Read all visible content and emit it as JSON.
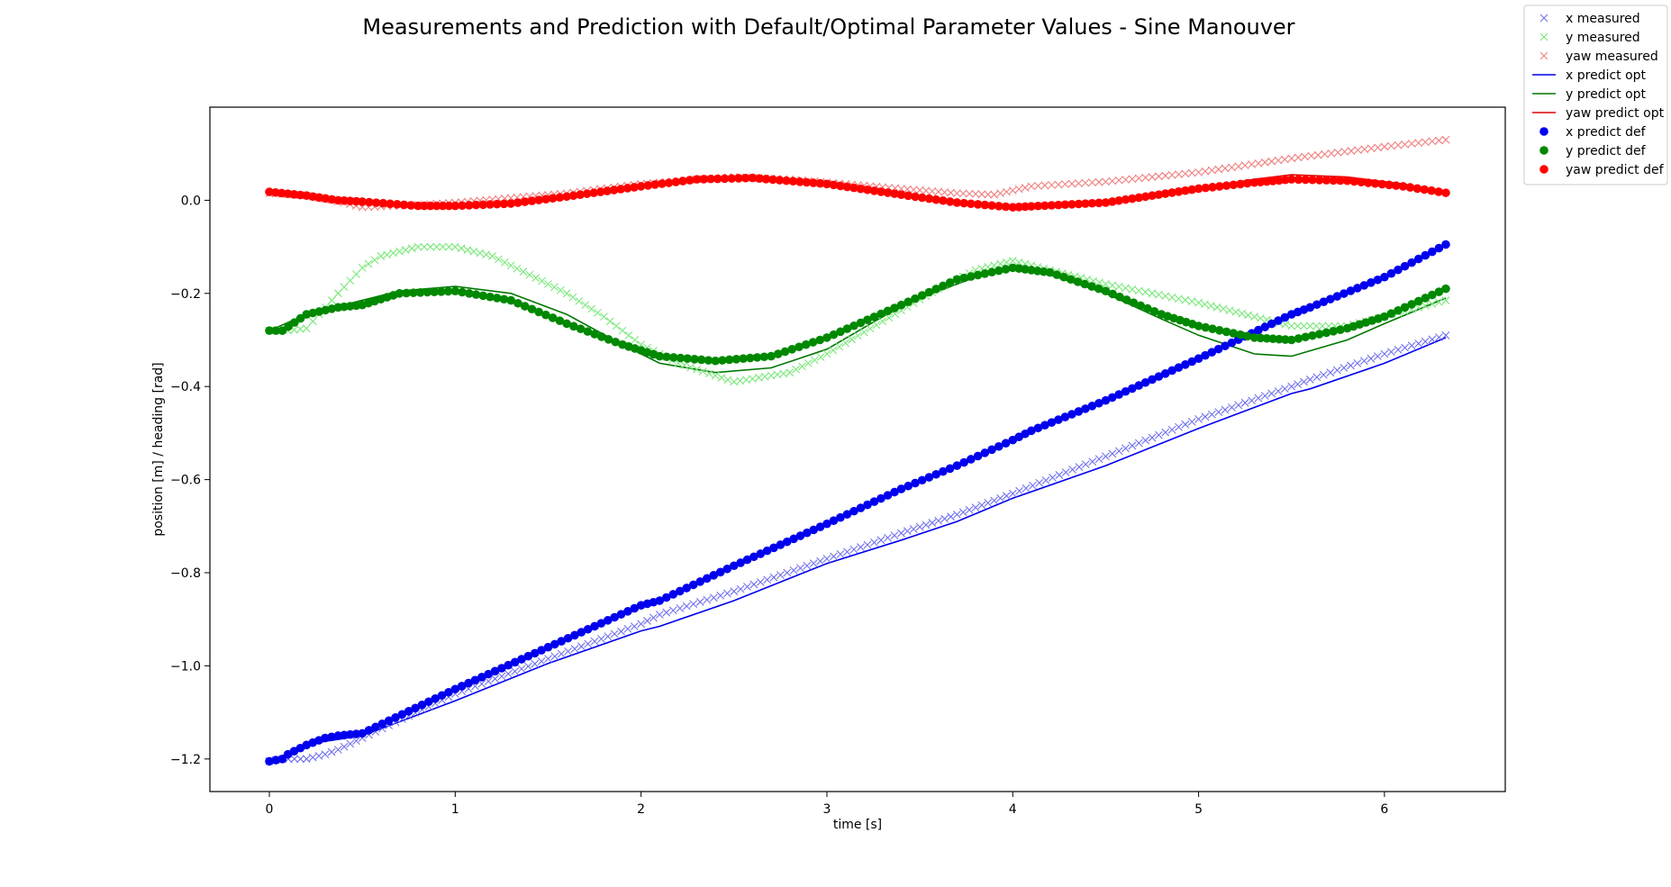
{
  "chart_data": {
    "type": "line",
    "title": "Measurements and Prediction with Default/Optimal Parameter Values - Sine Manouver",
    "xlabel": "time [s]",
    "ylabel": "position [m] / heading [rad]",
    "xlim": [
      -0.32,
      6.65
    ],
    "ylim": [
      -1.27,
      0.2
    ],
    "xticks": [
      0,
      1,
      2,
      3,
      4,
      5,
      6
    ],
    "yticks": [
      0.0,
      -0.2,
      -0.4,
      -0.6,
      -0.8,
      -1.0,
      -1.2
    ],
    "xtick_labels": [
      "0",
      "1",
      "2",
      "3",
      "4",
      "5",
      "6"
    ],
    "ytick_labels": [
      "0.0",
      "−0.2",
      "−0.4",
      "−0.6",
      "−0.8",
      "−1.0",
      "−1.2"
    ],
    "grid": false,
    "legend_position": "top-right, outside plot",
    "series": [
      {
        "name": "x measured",
        "style": "x",
        "color": "#7070ee",
        "points": [
          [
            0,
            -1.205
          ],
          [
            0.07,
            -1.2
          ],
          [
            0.2,
            -1.2
          ],
          [
            0.3,
            -1.19
          ],
          [
            0.37,
            -1.18
          ],
          [
            0.5,
            -1.155
          ],
          [
            1.0,
            -1.06
          ],
          [
            1.5,
            -0.985
          ],
          [
            2.0,
            -0.91
          ],
          [
            2.1,
            -0.89
          ],
          [
            2.5,
            -0.84
          ],
          [
            3.0,
            -0.77
          ],
          [
            3.4,
            -0.715
          ],
          [
            3.7,
            -0.675
          ],
          [
            4.0,
            -0.63
          ],
          [
            4.5,
            -0.55
          ],
          [
            5.0,
            -0.47
          ],
          [
            5.5,
            -0.4
          ],
          [
            5.6,
            -0.385
          ],
          [
            6.0,
            -0.33
          ],
          [
            6.33,
            -0.29
          ]
        ]
      },
      {
        "name": "y measured",
        "style": "x",
        "color": "#7ae87a",
        "points": [
          [
            0,
            -0.28
          ],
          [
            0.1,
            -0.28
          ],
          [
            0.2,
            -0.275
          ],
          [
            0.37,
            -0.2
          ],
          [
            0.5,
            -0.145
          ],
          [
            0.6,
            -0.12
          ],
          [
            0.8,
            -0.1
          ],
          [
            1.0,
            -0.1
          ],
          [
            1.2,
            -0.12
          ],
          [
            1.4,
            -0.16
          ],
          [
            1.6,
            -0.2
          ],
          [
            1.8,
            -0.25
          ],
          [
            2.0,
            -0.31
          ],
          [
            2.2,
            -0.35
          ],
          [
            2.5,
            -0.39
          ],
          [
            2.8,
            -0.37
          ],
          [
            3.0,
            -0.33
          ],
          [
            3.3,
            -0.26
          ],
          [
            3.6,
            -0.19
          ],
          [
            3.8,
            -0.15
          ],
          [
            4.0,
            -0.13
          ],
          [
            4.2,
            -0.15
          ],
          [
            4.5,
            -0.18
          ],
          [
            5.0,
            -0.22
          ],
          [
            5.3,
            -0.25
          ],
          [
            5.5,
            -0.27
          ],
          [
            5.8,
            -0.27
          ],
          [
            6.0,
            -0.25
          ],
          [
            6.33,
            -0.215
          ]
        ]
      },
      {
        "name": "yaw measured",
        "style": "x",
        "color": "#f08080",
        "points": [
          [
            0,
            0.015
          ],
          [
            0.2,
            0.01
          ],
          [
            0.4,
            -0.005
          ],
          [
            0.5,
            -0.015
          ],
          [
            0.8,
            -0.01
          ],
          [
            1.0,
            -0.005
          ],
          [
            1.3,
            0.005
          ],
          [
            1.6,
            0.015
          ],
          [
            2.0,
            0.035
          ],
          [
            2.3,
            0.045
          ],
          [
            2.5,
            0.05
          ],
          [
            2.8,
            0.045
          ],
          [
            3.1,
            0.035
          ],
          [
            3.4,
            0.025
          ],
          [
            3.7,
            0.015
          ],
          [
            3.9,
            0.012
          ],
          [
            4.1,
            0.03
          ],
          [
            4.5,
            0.04
          ],
          [
            5.0,
            0.06
          ],
          [
            5.5,
            0.09
          ],
          [
            6.0,
            0.115
          ],
          [
            6.33,
            0.13
          ]
        ]
      },
      {
        "name": "x predict opt",
        "style": "line",
        "color": "#0000ee",
        "points": [
          [
            0,
            -1.205
          ],
          [
            0.25,
            -1.165
          ],
          [
            0.5,
            -1.15
          ],
          [
            1.0,
            -1.075
          ],
          [
            1.5,
            -0.995
          ],
          [
            2.0,
            -0.925
          ],
          [
            2.1,
            -0.915
          ],
          [
            2.5,
            -0.86
          ],
          [
            3.0,
            -0.78
          ],
          [
            3.4,
            -0.73
          ],
          [
            3.7,
            -0.69
          ],
          [
            4.0,
            -0.64
          ],
          [
            4.5,
            -0.57
          ],
          [
            5.0,
            -0.49
          ],
          [
            5.5,
            -0.415
          ],
          [
            5.6,
            -0.405
          ],
          [
            6.0,
            -0.35
          ],
          [
            6.33,
            -0.295
          ]
        ]
      },
      {
        "name": "y predict opt",
        "style": "line",
        "color": "#007700",
        "points": [
          [
            0,
            -0.28
          ],
          [
            0.2,
            -0.245
          ],
          [
            0.4,
            -0.225
          ],
          [
            0.7,
            -0.195
          ],
          [
            1.0,
            -0.185
          ],
          [
            1.3,
            -0.2
          ],
          [
            1.6,
            -0.245
          ],
          [
            1.9,
            -0.31
          ],
          [
            2.1,
            -0.35
          ],
          [
            2.4,
            -0.37
          ],
          [
            2.7,
            -0.36
          ],
          [
            3.0,
            -0.32
          ],
          [
            3.3,
            -0.25
          ],
          [
            3.5,
            -0.21
          ],
          [
            3.8,
            -0.165
          ],
          [
            4.0,
            -0.145
          ],
          [
            4.2,
            -0.16
          ],
          [
            4.5,
            -0.2
          ],
          [
            4.8,
            -0.255
          ],
          [
            5.0,
            -0.29
          ],
          [
            5.3,
            -0.33
          ],
          [
            5.5,
            -0.335
          ],
          [
            5.8,
            -0.3
          ],
          [
            6.0,
            -0.265
          ],
          [
            6.33,
            -0.21
          ]
        ]
      },
      {
        "name": "yaw predict opt",
        "style": "line",
        "color": "#dd0000",
        "points": [
          [
            0,
            0.015
          ],
          [
            0.3,
            0.005
          ],
          [
            0.5,
            -0.005
          ],
          [
            0.8,
            -0.013
          ],
          [
            1.0,
            -0.015
          ],
          [
            1.3,
            -0.01
          ],
          [
            1.6,
            0.005
          ],
          [
            2.0,
            0.03
          ],
          [
            2.3,
            0.045
          ],
          [
            2.6,
            0.05
          ],
          [
            3.0,
            0.04
          ],
          [
            3.4,
            0.015
          ],
          [
            3.7,
            -0.005
          ],
          [
            4.0,
            -0.015
          ],
          [
            4.3,
            -0.012
          ],
          [
            4.6,
            -0.003
          ],
          [
            5.0,
            0.025
          ],
          [
            5.3,
            0.045
          ],
          [
            5.5,
            0.055
          ],
          [
            5.8,
            0.05
          ],
          [
            6.1,
            0.035
          ],
          [
            6.33,
            0.018
          ]
        ]
      },
      {
        "name": "x predict def",
        "style": "dot",
        "color": "#0000ee",
        "points": [
          [
            0,
            -1.205
          ],
          [
            0.07,
            -1.2
          ],
          [
            0.1,
            -1.19
          ],
          [
            0.2,
            -1.17
          ],
          [
            0.3,
            -1.155
          ],
          [
            0.37,
            -1.15
          ],
          [
            0.5,
            -1.145
          ],
          [
            1.0,
            -1.05
          ],
          [
            1.5,
            -0.96
          ],
          [
            2.0,
            -0.87
          ],
          [
            2.1,
            -0.86
          ],
          [
            2.5,
            -0.785
          ],
          [
            3.0,
            -0.695
          ],
          [
            3.4,
            -0.62
          ],
          [
            3.7,
            -0.57
          ],
          [
            4.0,
            -0.515
          ],
          [
            4.1,
            -0.495
          ],
          [
            4.5,
            -0.43
          ],
          [
            5.0,
            -0.34
          ],
          [
            5.5,
            -0.245
          ],
          [
            5.6,
            -0.23
          ],
          [
            6.0,
            -0.165
          ],
          [
            6.33,
            -0.095
          ]
        ]
      },
      {
        "name": "y predict def",
        "style": "dot",
        "color": "#008800",
        "points": [
          [
            0,
            -0.28
          ],
          [
            0.07,
            -0.28
          ],
          [
            0.2,
            -0.245
          ],
          [
            0.37,
            -0.23
          ],
          [
            0.5,
            -0.225
          ],
          [
            0.7,
            -0.2
          ],
          [
            1.0,
            -0.195
          ],
          [
            1.3,
            -0.215
          ],
          [
            1.6,
            -0.265
          ],
          [
            1.9,
            -0.31
          ],
          [
            2.1,
            -0.335
          ],
          [
            2.4,
            -0.345
          ],
          [
            2.7,
            -0.335
          ],
          [
            3.0,
            -0.295
          ],
          [
            3.4,
            -0.225
          ],
          [
            3.7,
            -0.17
          ],
          [
            4.0,
            -0.145
          ],
          [
            4.2,
            -0.155
          ],
          [
            4.5,
            -0.195
          ],
          [
            4.8,
            -0.245
          ],
          [
            5.0,
            -0.27
          ],
          [
            5.3,
            -0.295
          ],
          [
            5.5,
            -0.3
          ],
          [
            5.8,
            -0.275
          ],
          [
            6.0,
            -0.25
          ],
          [
            6.33,
            -0.19
          ]
        ]
      },
      {
        "name": "yaw predict def",
        "style": "dot",
        "color": "#ff0000",
        "points": [
          [
            0,
            0.018
          ],
          [
            0.2,
            0.01
          ],
          [
            0.37,
            0.0
          ],
          [
            0.5,
            -0.003
          ],
          [
            0.8,
            -0.012
          ],
          [
            1.0,
            -0.012
          ],
          [
            1.3,
            -0.007
          ],
          [
            1.6,
            0.008
          ],
          [
            2.0,
            0.03
          ],
          [
            2.3,
            0.045
          ],
          [
            2.6,
            0.048
          ],
          [
            3.0,
            0.035
          ],
          [
            3.4,
            0.012
          ],
          [
            3.7,
            -0.005
          ],
          [
            4.0,
            -0.015
          ],
          [
            4.1,
            -0.013
          ],
          [
            4.5,
            -0.005
          ],
          [
            5.0,
            0.025
          ],
          [
            5.3,
            0.038
          ],
          [
            5.5,
            0.045
          ],
          [
            5.8,
            0.042
          ],
          [
            6.1,
            0.03
          ],
          [
            6.33,
            0.016
          ]
        ]
      }
    ]
  }
}
